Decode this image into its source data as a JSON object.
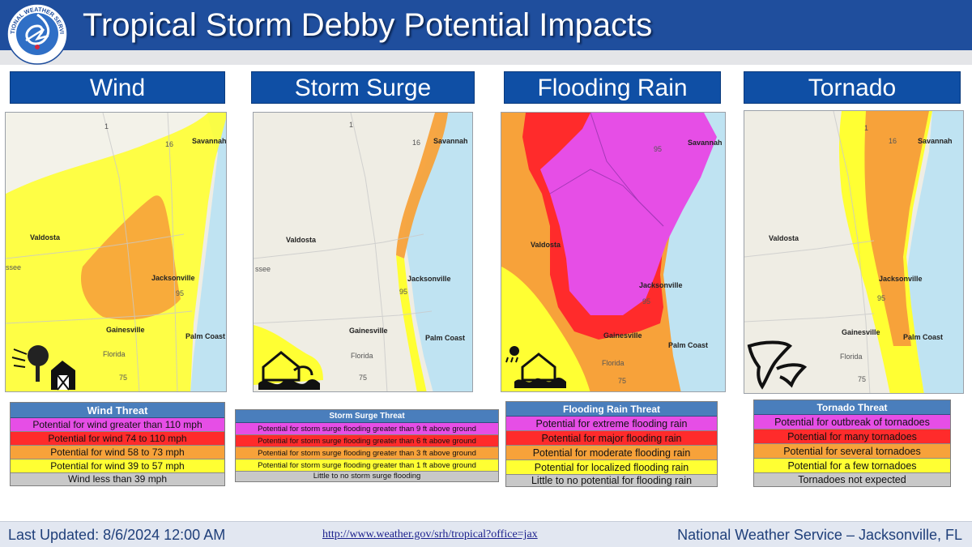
{
  "header": {
    "title": "Tropical Storm Debby Potential Impacts",
    "logo_text": "NATIONAL WEATHER SERVICE"
  },
  "map_labels": {
    "savannah": "Savannah",
    "valdosta": "Valdosta",
    "jacksonville": "Jacksonville",
    "gainesville": "Gainesville",
    "palm_coast": "Palm Coast",
    "florida": "Florida",
    "tallahassee_fragment": "ssee",
    "i95_top": "95",
    "i95_bottom": "95",
    "i75": "75",
    "i16": "16",
    "us1": "1"
  },
  "colors": {
    "extreme": "#e64ee6",
    "high": "#ff2b2b",
    "moderate": "#f7a23a",
    "elevated": "#ffff33",
    "none": "#c8c8c8",
    "legend_header": "#4a7ebc",
    "title_bar": "#0f4fa5"
  },
  "panels": [
    {
      "title": "Wind",
      "icon": "wind-tree-barn-icon",
      "legend_title": "Wind Threat",
      "levels": [
        {
          "label": "Potential for wind greater than 110 mph",
          "color": "#e64ee6"
        },
        {
          "label": "Potential for wind 74 to 110 mph",
          "color": "#ff2b2b"
        },
        {
          "label": "Potential for wind 58 to 73 mph",
          "color": "#f7a23a"
        },
        {
          "label": "Potential for wind 39 to 57 mph",
          "color": "#ffff33"
        },
        {
          "label": "Wind less than 39 mph",
          "color": "#c8c8c8"
        }
      ]
    },
    {
      "title": "Storm Surge",
      "icon": "storm-surge-house-icon",
      "legend_title": "Storm Surge Threat",
      "levels": [
        {
          "label": "Potential for storm surge flooding greater than 9 ft above ground",
          "color": "#e64ee6"
        },
        {
          "label": "Potential for storm surge flooding greater than 6 ft above ground",
          "color": "#ff2b2b"
        },
        {
          "label": "Potential for storm surge flooding greater than 3 ft above ground",
          "color": "#f7a23a"
        },
        {
          "label": "Potential for storm surge flooding greater than 1 ft above ground",
          "color": "#ffff33"
        },
        {
          "label": "Little to no storm surge flooding",
          "color": "#c8c8c8"
        }
      ]
    },
    {
      "title": "Flooding Rain",
      "icon": "flooding-rain-house-icon",
      "legend_title": "Flooding Rain Threat",
      "levels": [
        {
          "label": "Potential for extreme flooding rain",
          "color": "#e64ee6"
        },
        {
          "label": "Potential for major flooding rain",
          "color": "#ff2b2b"
        },
        {
          "label": "Potential for moderate flooding rain",
          "color": "#f7a23a"
        },
        {
          "label": "Potential for localized flooding rain",
          "color": "#ffff33"
        },
        {
          "label": "Little to no potential for flooding rain",
          "color": "#c8c8c8"
        }
      ]
    },
    {
      "title": "Tornado",
      "icon": "tornado-icon",
      "legend_title": "Tornado Threat",
      "levels": [
        {
          "label": "Potential for outbreak of tornadoes",
          "color": "#e64ee6"
        },
        {
          "label": "Potential for many  tornadoes",
          "color": "#ff2b2b"
        },
        {
          "label": "Potential for several tornadoes",
          "color": "#f7a23a"
        },
        {
          "label": "Potential for a few tornadoes",
          "color": "#ffff33"
        },
        {
          "label": "Tornadoes not expected",
          "color": "#c8c8c8"
        }
      ]
    }
  ],
  "footer": {
    "last_updated": "Last Updated:   8/6/2024 12:00 AM",
    "url": "http://www.weather.gov/srh/tropical?office=jax",
    "office": "National Weather Service – Jacksonville, FL"
  }
}
